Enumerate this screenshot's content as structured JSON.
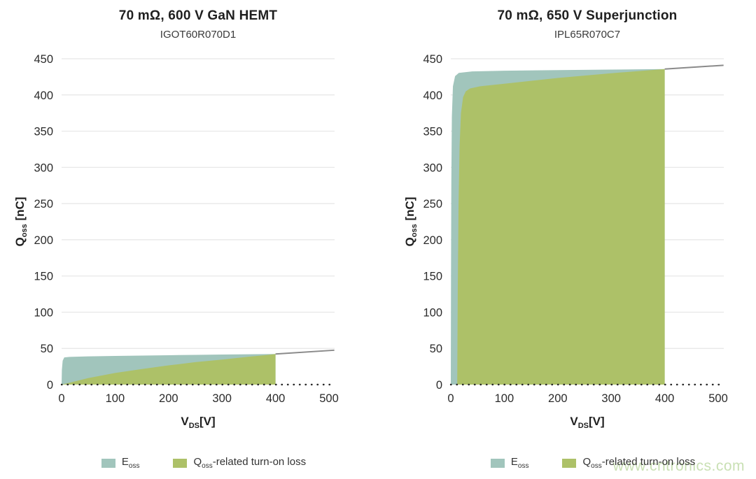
{
  "page": {
    "background": "#ffffff",
    "watermark": "www.cntronics.com",
    "watermark_color": "#9ec878"
  },
  "colors": {
    "eoss_fill": "#a1c5bc",
    "turnon_fill": "#adc168",
    "line_gray": "#8a8a8a",
    "grid": "#e6e6e6",
    "dotted_axis": "#2b2b2b",
    "text": "#2b2b2b"
  },
  "chart_data": [
    {
      "type": "area",
      "title": "70 mΩ, 600 V GaN HEMT",
      "subtitle": "IGOT60R070D1",
      "xlabel": {
        "main": "V",
        "sub": "DS",
        "unit": "[V]"
      },
      "ylabel": {
        "main": "Q",
        "sub": "oss",
        "unit": " [nC]"
      },
      "xlim": [
        0,
        510
      ],
      "ylim": [
        0,
        450
      ],
      "xticks": [
        0,
        100,
        200,
        300,
        400,
        500
      ],
      "yticks": [
        0,
        50,
        100,
        150,
        200,
        250,
        300,
        350,
        400,
        450
      ],
      "grid": "horizontal-only",
      "legend_position": "bottom",
      "series": [
        {
          "name": "Eoss total charge area",
          "kind": "area",
          "color": "#a1c5bc",
          "x": [
            0,
            0.5,
            2,
            5,
            15,
            50,
            100,
            150,
            200,
            250,
            300,
            350,
            400
          ],
          "y": [
            0,
            20,
            33,
            37.5,
            38.3,
            39,
            39.6,
            40.1,
            40.6,
            41.1,
            41.5,
            41.9,
            42.3
          ]
        },
        {
          "name": "Qoss-related turn-on loss area",
          "kind": "area",
          "color": "#adc168",
          "x": [
            0,
            20,
            50,
            100,
            150,
            200,
            250,
            300,
            350,
            380,
            400
          ],
          "y": [
            0,
            3.5,
            9,
            16,
            21.5,
            26.5,
            31,
            34.5,
            38.5,
            40.5,
            42.3
          ]
        },
        {
          "name": "Qoss curve continuation",
          "kind": "line",
          "color": "#8a8a8a",
          "x": [
            400,
            510
          ],
          "y": [
            42.3,
            47.5
          ]
        }
      ],
      "legend": [
        {
          "main": "E",
          "sub": "oss",
          "rest": "",
          "color": "#a1c5bc"
        },
        {
          "main": "Q",
          "sub": "oss",
          "rest": "-related turn-on loss",
          "color": "#adc168"
        }
      ]
    },
    {
      "type": "area",
      "title": "70 mΩ, 650 V Superjunction",
      "subtitle": "IPL65R070C7",
      "xlabel": {
        "main": "V",
        "sub": "DS",
        "unit": "[V]"
      },
      "ylabel": {
        "main": "Q",
        "sub": "oss",
        "unit": " [nC]"
      },
      "xlim": [
        0,
        510
      ],
      "ylim": [
        0,
        450
      ],
      "xticks": [
        0,
        100,
        200,
        300,
        400,
        500
      ],
      "yticks": [
        0,
        50,
        100,
        150,
        200,
        250,
        300,
        350,
        400,
        450
      ],
      "grid": "horizontal-only",
      "legend_position": "bottom",
      "series": [
        {
          "name": "Eoss total charge area",
          "kind": "area",
          "color": "#a1c5bc",
          "x": [
            0,
            0.4,
            1,
            2,
            4,
            8,
            15,
            40,
            100,
            200,
            300,
            400
          ],
          "y": [
            0,
            150,
            280,
            370,
            412,
            426,
            430.5,
            432.5,
            433.5,
            434.3,
            435,
            435.8
          ]
        },
        {
          "name": "Qoss-related turn-on loss area",
          "kind": "area",
          "color": "#adc168",
          "x": [
            12,
            13,
            14.5,
            16.5,
            19,
            23,
            28,
            36,
            55,
            100,
            200,
            300,
            400
          ],
          "y": [
            0,
            130,
            250,
            330,
            375,
            397,
            405,
            409,
            412,
            415.5,
            423.5,
            430,
            435.8
          ]
        },
        {
          "name": "Qoss curve continuation",
          "kind": "line",
          "color": "#8a8a8a",
          "x": [
            400,
            510
          ],
          "y": [
            435.8,
            441
          ]
        }
      ],
      "legend": [
        {
          "main": "E",
          "sub": "oss",
          "rest": "",
          "color": "#a1c5bc"
        },
        {
          "main": "Q",
          "sub": "oss",
          "rest": "-related turn-on loss",
          "color": "#adc168"
        }
      ]
    }
  ]
}
